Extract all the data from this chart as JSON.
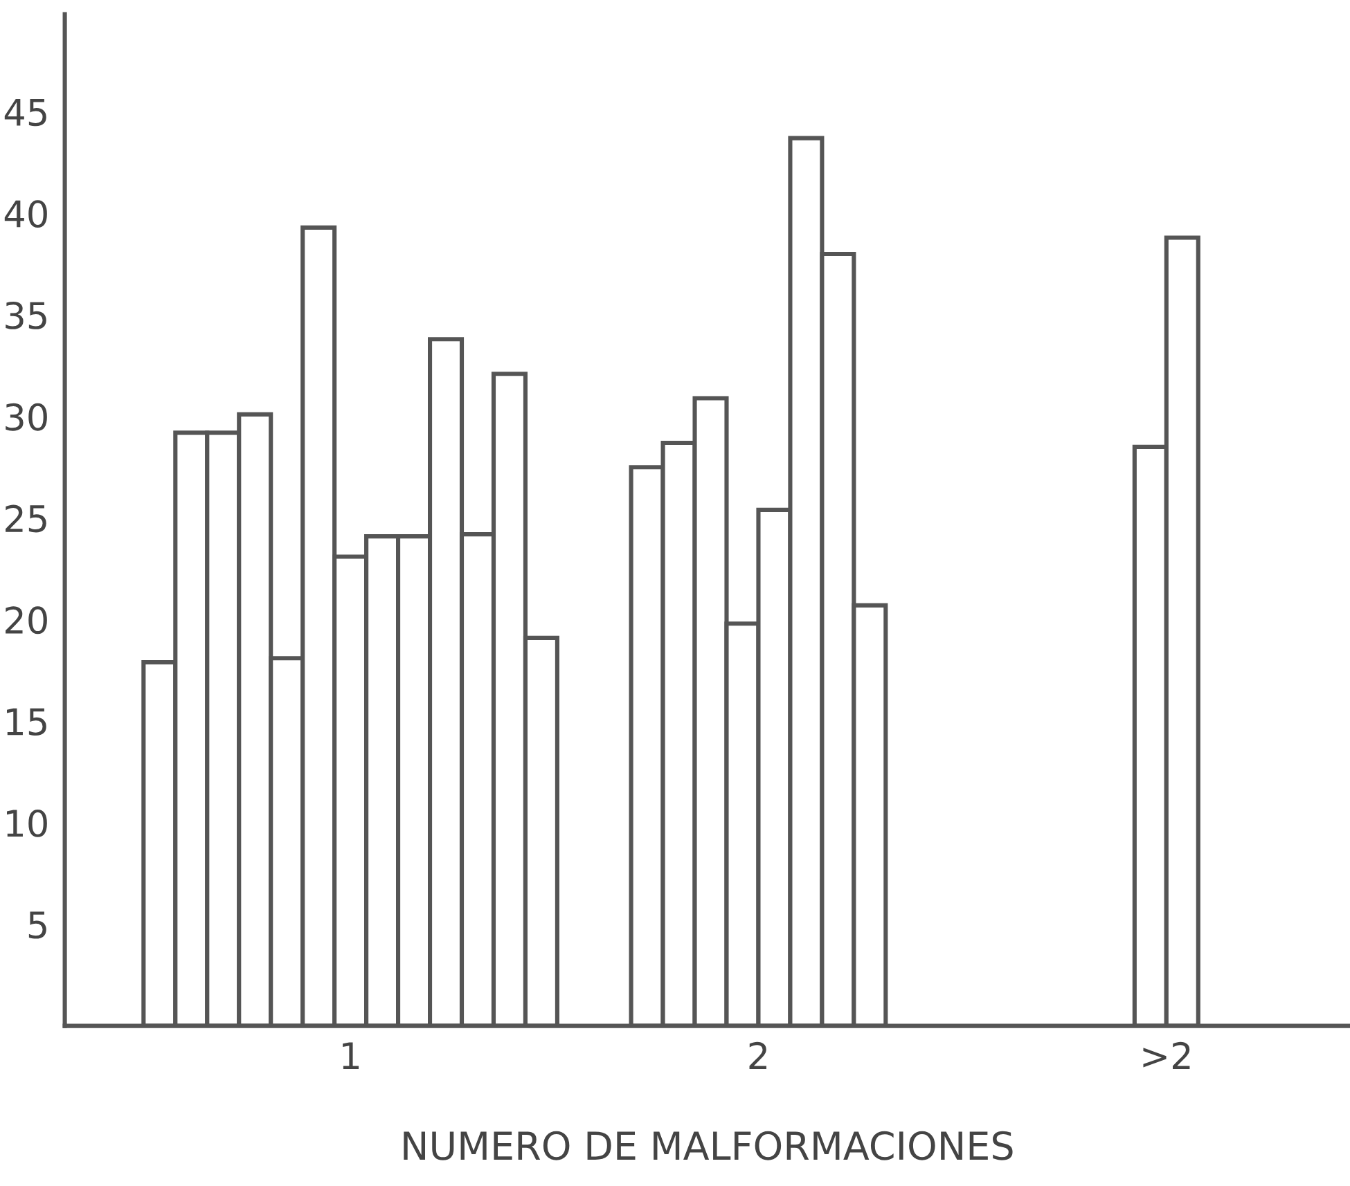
{
  "chart_data": {
    "type": "bar",
    "xlabel": "NUMERO DE MALFORMACIONES",
    "categories": [
      "1",
      "2",
      ">2"
    ],
    "series": [
      {
        "color": "#ffffff",
        "values": [
          17.9,
          27.5,
          28.5
        ]
      },
      {
        "color": "#ffffff",
        "values": [
          29.2,
          28.7,
          38.8
        ]
      },
      {
        "color": "#ffffff",
        "values": [
          29.2,
          30.9,
          null
        ]
      },
      {
        "color": "#ffffff",
        "values": [
          30.1,
          19.8,
          null
        ]
      },
      {
        "color": "#ffffff",
        "values": [
          18.1,
          25.4,
          null
        ]
      },
      {
        "color": "#ffffff",
        "values": [
          39.3,
          43.7,
          null
        ]
      },
      {
        "color": "#ffffff",
        "values": [
          23.1,
          38.0,
          null
        ]
      },
      {
        "color": "#ffffff",
        "values": [
          24.1,
          20.7,
          null
        ]
      },
      {
        "color": "#ffffff",
        "values": [
          24.1,
          null,
          null
        ]
      },
      {
        "color": "#ffffff",
        "values": [
          33.8,
          null,
          null
        ]
      },
      {
        "color": "#ffffff",
        "values": [
          24.2,
          null,
          null
        ]
      },
      {
        "color": "#ffffff",
        "values": [
          32.1,
          null,
          null
        ]
      },
      {
        "color": "#ffffff",
        "values": [
          19.1,
          null,
          null
        ]
      }
    ],
    "ylim": [
      0,
      49.8
    ],
    "yticks": [
      5,
      10,
      15,
      20,
      25,
      30,
      35,
      40,
      45
    ],
    "grid": false,
    "legend": false
  }
}
